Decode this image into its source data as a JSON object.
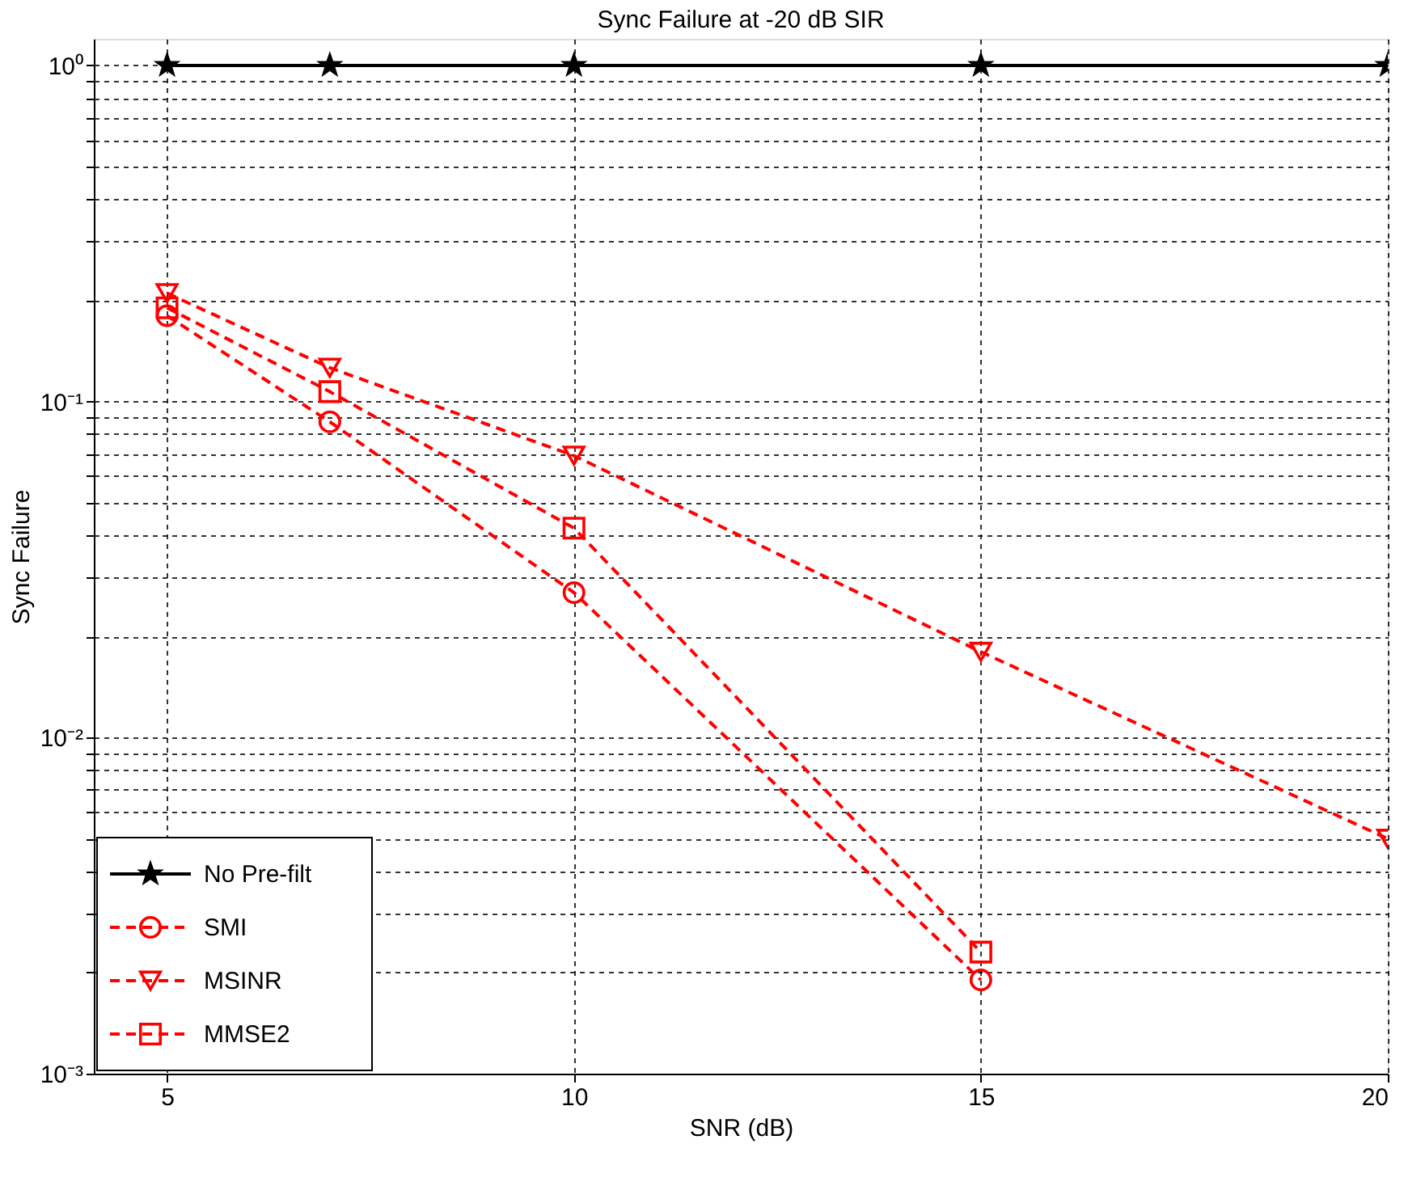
{
  "chart_data": {
    "type": "line",
    "title": "Sync Failure at -20 dB SIR",
    "xlabel": "SNR (dB)",
    "ylabel": "Sync Failure",
    "x": [
      5,
      7,
      10,
      15,
      20
    ],
    "series": [
      {
        "name": "No Pre-filt",
        "color": "#000000",
        "marker": "star",
        "line_style": "solid",
        "values": [
          1,
          1,
          1,
          1,
          1
        ]
      },
      {
        "name": "SMI",
        "color": "#ff0000",
        "marker": "circle",
        "line_style": "dashed",
        "values": [
          0.18,
          0.087,
          0.027,
          0.0019,
          null
        ]
      },
      {
        "name": "MSINR",
        "color": "#ff0000",
        "marker": "triangle",
        "line_style": "dashed",
        "values": [
          0.21,
          0.126,
          0.069,
          0.018,
          0.005
        ]
      },
      {
        "name": "MMSE2",
        "color": "#ff0000",
        "marker": "square",
        "line_style": "dashed",
        "values": [
          0.19,
          0.107,
          0.042,
          0.0023,
          null
        ]
      }
    ],
    "log": "y",
    "xlim": [
      4.1,
      20
    ],
    "ylim": [
      0.001,
      1.2
    ],
    "xticks": [
      5,
      10,
      15,
      20
    ],
    "yticks": [
      {
        "value": 0.001,
        "label": "10⁻³"
      },
      {
        "value": 0.002,
        "label": null
      },
      {
        "value": 0.003,
        "label": null
      },
      {
        "value": 0.004,
        "label": null
      },
      {
        "value": 0.005,
        "label": null
      },
      {
        "value": 0.006,
        "label": null
      },
      {
        "value": 0.007,
        "label": null
      },
      {
        "value": 0.008,
        "label": null
      },
      {
        "value": 0.009,
        "label": null
      },
      {
        "value": 0.01,
        "label": "10⁻²"
      },
      {
        "value": 0.02,
        "label": null
      },
      {
        "value": 0.03,
        "label": null
      },
      {
        "value": 0.04,
        "label": null
      },
      {
        "value": 0.05,
        "label": null
      },
      {
        "value": 0.06,
        "label": null
      },
      {
        "value": 0.07,
        "label": null
      },
      {
        "value": 0.08,
        "label": null
      },
      {
        "value": 0.09,
        "label": null
      },
      {
        "value": 0.1,
        "label": "10⁻¹"
      },
      {
        "value": 0.2,
        "label": null
      },
      {
        "value": 0.3,
        "label": null
      },
      {
        "value": 0.4,
        "label": null
      },
      {
        "value": 0.5,
        "label": null
      },
      {
        "value": 0.6,
        "label": null
      },
      {
        "value": 0.7,
        "label": null
      },
      {
        "value": 0.8,
        "label": null
      },
      {
        "value": 0.9,
        "label": null
      },
      {
        "value": 1,
        "label": "10⁰"
      }
    ],
    "grid": true,
    "legend": "bottom left"
  }
}
